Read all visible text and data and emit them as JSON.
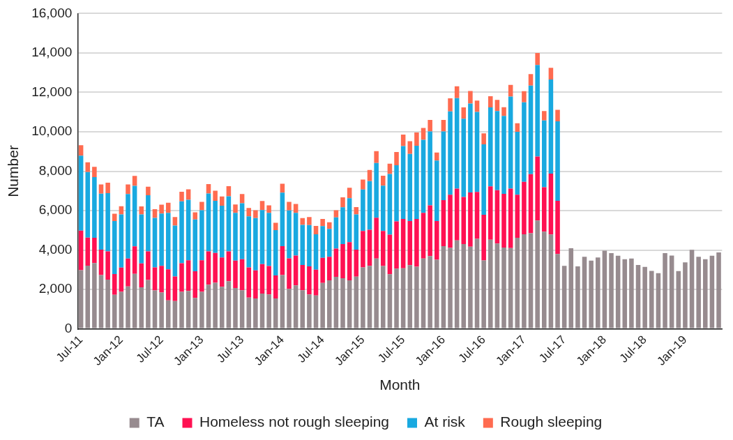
{
  "chart_data": {
    "type": "bar",
    "stacked": true,
    "xlabel": "Month",
    "ylabel": "Number",
    "categories": [
      "Jul-11",
      null,
      null,
      null,
      null,
      null,
      "Jan-12",
      null,
      null,
      null,
      null,
      null,
      "Jul-12",
      null,
      null,
      null,
      null,
      null,
      "Jan-13",
      null,
      null,
      null,
      null,
      null,
      "Jul-13",
      null,
      null,
      null,
      null,
      null,
      "Jan-14",
      null,
      null,
      null,
      null,
      null,
      "Jul-14",
      null,
      null,
      null,
      null,
      null,
      "Jan-15",
      null,
      null,
      null,
      null,
      null,
      "Jul-15",
      null,
      null,
      null,
      null,
      null,
      "Jan-16",
      null,
      null,
      null,
      null,
      null,
      "Jul-16",
      null,
      null,
      null,
      null,
      null,
      "Jan-17",
      null,
      null,
      null,
      null,
      null,
      "Jul-17",
      null,
      null,
      null,
      null,
      null,
      "Jan-18",
      null,
      null,
      null,
      null,
      null,
      "Jul-18",
      null,
      null,
      null,
      null,
      null,
      "Jan-19",
      null,
      null,
      null,
      null,
      null
    ],
    "series": [
      {
        "name": "TA",
        "color": "#978b8f",
        "values": [
          2980,
          3210,
          3340,
          2730,
          2500,
          1730,
          1880,
          2150,
          2790,
          2110,
          2480,
          1950,
          1840,
          1450,
          1410,
          1880,
          1920,
          1570,
          1880,
          2240,
          2340,
          2140,
          2420,
          2070,
          1960,
          1590,
          1540,
          1790,
          1750,
          1540,
          2730,
          2030,
          2210,
          1960,
          1750,
          1690,
          2330,
          2460,
          2640,
          2570,
          2460,
          2650,
          3120,
          3200,
          3570,
          3190,
          2770,
          3060,
          3070,
          3230,
          3150,
          3570,
          3690,
          3510,
          4200,
          4110,
          4490,
          4300,
          4170,
          4570,
          3470,
          4520,
          4330,
          4130,
          4100,
          4620,
          4800,
          4850,
          5500,
          4930,
          4790,
          3800,
          3200,
          4090,
          3170,
          3660,
          3460,
          3620,
          3970,
          3840,
          3710,
          3530,
          3570,
          3240,
          3140,
          2940,
          2830,
          3840,
          3720,
          2930,
          3370,
          4010,
          3660,
          3530,
          3710,
          3880
        ]
      },
      {
        "name": "Homeless not rough sleeping",
        "color": "#ff1152",
        "values": [
          2000,
          1420,
          1280,
          1290,
          1430,
          1050,
          1230,
          1420,
          1400,
          1210,
          1450,
          1170,
          1360,
          1570,
          1250,
          1450,
          1560,
          1350,
          1600,
          1690,
          1510,
          1480,
          1510,
          1390,
          1570,
          1530,
          1430,
          1500,
          1440,
          1170,
          1470,
          1550,
          1510,
          1280,
          1420,
          1310,
          1270,
          1200,
          1430,
          1730,
          1940,
          1370,
          1850,
          1830,
          2070,
          1780,
          2010,
          2390,
          2510,
          2240,
          2430,
          2320,
          2580,
          1960,
          2330,
          2700,
          2630,
          2390,
          2750,
          2380,
          2320,
          2710,
          2710,
          2720,
          3020,
          2190,
          2660,
          3000,
          3240,
          2260,
          3090,
          2700,
          null,
          null,
          null,
          null,
          null,
          null,
          null,
          null,
          null,
          null,
          null,
          null,
          null,
          null,
          null,
          null,
          null,
          null,
          null,
          null,
          null,
          null,
          null,
          null
        ]
      },
      {
        "name": "At risk",
        "color": "#19a9e0",
        "values": [
          3810,
          3330,
          3080,
          2840,
          2960,
          2690,
          2700,
          3270,
          3070,
          2490,
          2850,
          2510,
          2650,
          2870,
          2580,
          3140,
          3070,
          2630,
          2540,
          2940,
          2650,
          2630,
          2800,
          2430,
          2840,
          2590,
          2650,
          2740,
          2700,
          2300,
          2710,
          2430,
          2170,
          2040,
          2100,
          1800,
          1610,
          1410,
          1590,
          1870,
          2230,
          1790,
          2100,
          2470,
          2780,
          2300,
          3080,
          2850,
          3690,
          3410,
          3710,
          3700,
          3750,
          3070,
          3490,
          4220,
          4590,
          3970,
          4510,
          4060,
          3570,
          4010,
          4010,
          3950,
          4670,
          3190,
          4030,
          4490,
          4650,
          3380,
          4770,
          4030,
          null,
          null,
          null,
          null,
          null,
          null,
          null,
          null,
          null,
          null,
          null,
          null,
          null,
          null,
          null,
          null,
          null,
          null,
          null,
          null,
          null,
          null,
          null,
          null
        ]
      },
      {
        "name": "Rough sleeping",
        "color": "#ff6b50",
        "values": [
          530,
          490,
          520,
          470,
          530,
          370,
          410,
          490,
          500,
          400,
          430,
          440,
          450,
          510,
          430,
          490,
          530,
          360,
          420,
          480,
          510,
          470,
          510,
          420,
          470,
          420,
          400,
          460,
          380,
          370,
          450,
          430,
          450,
          340,
          400,
          420,
          370,
          340,
          360,
          500,
          530,
          370,
          510,
          560,
          600,
          500,
          520,
          670,
          590,
          640,
          670,
          600,
          580,
          410,
          580,
          670,
          600,
          580,
          640,
          570,
          560,
          560,
          570,
          450,
          590,
          430,
          570,
          590,
          610,
          480,
          600,
          580,
          null,
          null,
          null,
          null,
          null,
          null,
          null,
          null,
          null,
          null,
          null,
          null,
          null,
          null,
          null,
          null,
          null,
          null,
          null,
          null,
          null,
          null,
          null,
          null
        ]
      }
    ],
    "ylim": [
      0,
      16000
    ],
    "yticks": [
      {
        "value": 0,
        "label": "0"
      },
      {
        "value": 2000,
        "label": "2,000"
      },
      {
        "value": 4000,
        "label": "4,000"
      },
      {
        "value": 6000,
        "label": "6,000"
      },
      {
        "value": 8000,
        "label": "8,000"
      },
      {
        "value": 10000,
        "label": "10,000"
      },
      {
        "value": 12000,
        "label": "12,000"
      },
      {
        "value": 14000,
        "label": "14,000"
      },
      {
        "value": 16000,
        "label": "16,000"
      }
    ],
    "grid": "y",
    "legend": "bottom"
  }
}
